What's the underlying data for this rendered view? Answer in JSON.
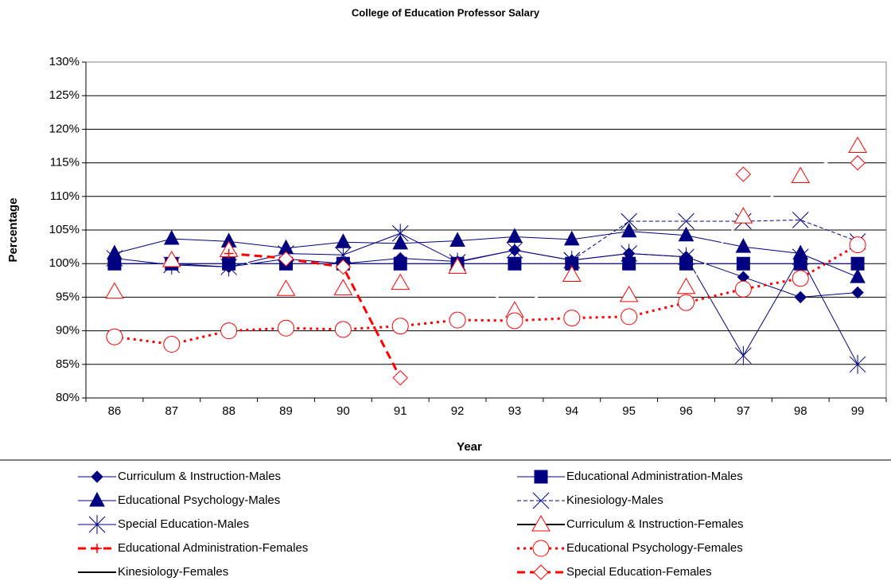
{
  "chart_data": {
    "type": "line",
    "title": "College of Education Professor Salary",
    "x_label": "Year",
    "y_label": "Percentage",
    "categories": [
      "86",
      "87",
      "88",
      "89",
      "90",
      "91",
      "92",
      "93",
      "94",
      "95",
      "96",
      "97",
      "98",
      "99"
    ],
    "ylim": [
      80,
      130
    ],
    "yticks": [
      {
        "value": 80,
        "label": "80%"
      },
      {
        "value": 85,
        "label": "85%"
      },
      {
        "value": 90,
        "label": "90%"
      },
      {
        "value": 95,
        "label": "95%"
      },
      {
        "value": 100,
        "label": "100%"
      },
      {
        "value": 105,
        "label": "105%"
      },
      {
        "value": 110,
        "label": "110%"
      },
      {
        "value": 115,
        "label": "115%"
      },
      {
        "value": 120,
        "label": "120%"
      },
      {
        "value": 125,
        "label": "125%"
      },
      {
        "value": 130,
        "label": "130%"
      }
    ],
    "grid": true,
    "series": [
      {
        "name": "Curriculum & Instruction-Males",
        "color": "#000080",
        "marker": "diamond",
        "dash": "solid",
        "width": 1,
        "values": [
          100,
          100,
          99.5,
          100.7,
          100,
          100.8,
          100.3,
          102,
          100.5,
          101.5,
          101,
          98,
          95,
          95.7
        ]
      },
      {
        "name": "Educational Administration-Males",
        "color": "#000080",
        "marker": "square",
        "dash": "solid",
        "width": 1,
        "values": [
          100,
          100,
          100,
          100,
          100,
          100,
          100,
          100,
          100,
          100,
          100,
          100,
          100,
          100
        ]
      },
      {
        "name": "Educational Psychology-Males",
        "color": "#000080",
        "marker": "triangle",
        "dash": "solid",
        "width": 1,
        "values": [
          101.5,
          103.7,
          103.3,
          102.3,
          103.2,
          103,
          103.4,
          104,
          103.6,
          104.8,
          104.2,
          102.5,
          101.5,
          98
        ]
      },
      {
        "name": "Kinesiology-Males",
        "color": "#000080",
        "marker": "x",
        "dash": "dashed",
        "width": 1,
        "values": [
          null,
          null,
          null,
          null,
          null,
          null,
          null,
          null,
          100.5,
          106.3,
          106.3,
          106.3,
          106.5,
          103.3
        ]
      },
      {
        "name": "Special Education-Males",
        "color": "#000080",
        "marker": "asterisk",
        "dash": "solid",
        "width": 1,
        "values": [
          100.8,
          99.8,
          99.5,
          101.5,
          101.3,
          104.5,
          100.2,
          102,
          100.5,
          101.5,
          101,
          86.3,
          101,
          85
        ]
      },
      {
        "name": "Curriculum & Instruction-Females",
        "color": "#ff0000",
        "line_color": "#ffffff",
        "legend_line_color": "#000000",
        "marker": "triangle-open",
        "dash": "solid",
        "width": 2,
        "values": [
          95.8,
          100.5,
          102,
          96.2,
          96.3,
          97.1,
          99.5,
          93,
          98.3,
          95.3,
          96.5,
          107,
          113,
          117.5
        ]
      },
      {
        "name": "Educational Administration-Females",
        "color": "#ff0000",
        "marker": "plus",
        "dash": "dashed",
        "width": 3,
        "values": [
          null,
          null,
          101.5,
          100.8,
          null,
          null,
          null,
          null,
          null,
          null,
          null,
          null,
          null,
          null
        ]
      },
      {
        "name": "Educational Psychology-Females",
        "color": "#ff0000",
        "marker": "circle-open",
        "dash": "dotted",
        "width": 3,
        "values": [
          89.1,
          88,
          90,
          90.4,
          90.2,
          90.7,
          91.6,
          91.5,
          91.9,
          92.1,
          94.2,
          96.2,
          97.8,
          102.8
        ]
      },
      {
        "name": "Kinesiology-Females",
        "color": "#000000",
        "marker": "none",
        "dash": "solid",
        "width": 2,
        "values": [
          null,
          null,
          null,
          null,
          null,
          null,
          null,
          null,
          null,
          null,
          null,
          null,
          null,
          null
        ]
      },
      {
        "name": "Special Education-Females",
        "color": "#ff0000",
        "marker": "diamond-open",
        "dash": "dashed",
        "width": 3,
        "values": [
          null,
          null,
          null,
          100.7,
          99.5,
          83,
          null,
          null,
          null,
          null,
          null,
          113.3,
          null,
          115
        ]
      }
    ]
  }
}
